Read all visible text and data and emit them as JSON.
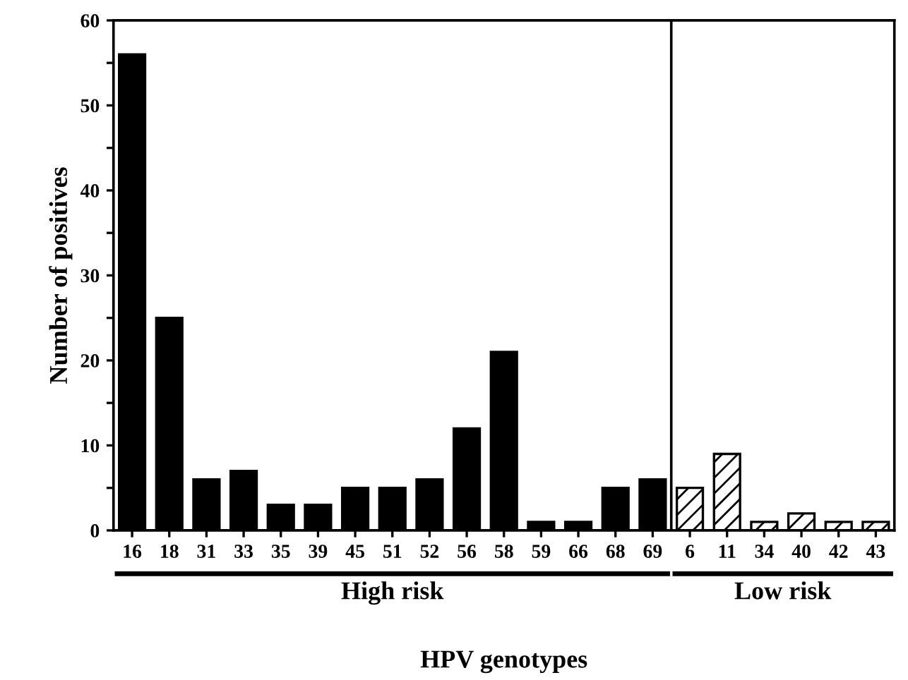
{
  "chart_data": {
    "type": "bar",
    "xlabel": "HPV genotypes",
    "ylabel": "Number of positives",
    "categories": [
      "16",
      "18",
      "31",
      "33",
      "35",
      "39",
      "45",
      "51",
      "52",
      "56",
      "58",
      "59",
      "66",
      "68",
      "69",
      "6",
      "11",
      "34",
      "40",
      "42",
      "43"
    ],
    "series": [
      {
        "name": "High risk",
        "color": "#000000",
        "values": [
          56,
          25,
          6,
          7,
          3,
          3,
          5,
          5,
          6,
          12,
          21,
          1,
          1,
          5,
          6,
          null,
          null,
          null,
          null,
          null,
          null
        ]
      },
      {
        "name": "Low risk",
        "color": "#000000",
        "values": [
          null,
          null,
          null,
          null,
          null,
          null,
          null,
          null,
          null,
          null,
          null,
          null,
          null,
          null,
          null,
          5,
          9,
          1,
          2,
          1,
          1
        ]
      }
    ],
    "ylim": [
      0,
      60
    ],
    "yticks": [
      0,
      {
        "value": 5,
        "label": null
      },
      10,
      {
        "value": 15,
        "label": null
      },
      20,
      {
        "value": 25,
        "label": null
      },
      30,
      {
        "value": 35,
        "label": null
      },
      40,
      {
        "value": 45,
        "label": null
      },
      50,
      {
        "value": 55,
        "label": null
      },
      60
    ],
    "grid": false,
    "legend": false
  }
}
